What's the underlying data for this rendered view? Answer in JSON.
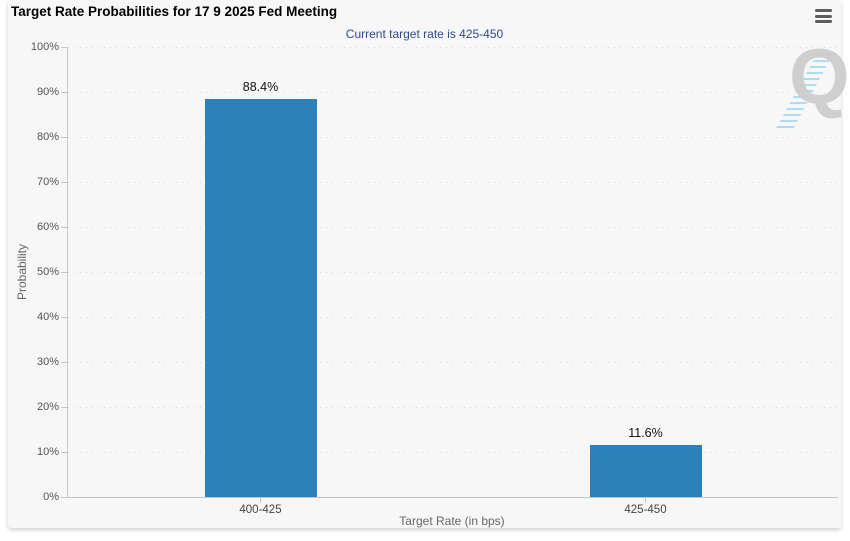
{
  "chart": {
    "title": "Target Rate Probabilities for 17 9 2025 Fed Meeting",
    "subtitle": "Current target rate is 425-450",
    "menu_icon": "hamburger-icon",
    "watermark_letter": "Q"
  },
  "chart_data": {
    "type": "bar",
    "title": "Target Rate Probabilities for 17 9 2025 Fed Meeting",
    "subtitle": "Current target rate is 425-450",
    "categories": [
      "400-425",
      "425-450"
    ],
    "values": [
      88.4,
      11.6
    ],
    "data_labels": [
      "88.4%",
      "11.6%"
    ],
    "xlabel": "Target Rate (in bps)",
    "ylabel": "Probability",
    "ylim": [
      0,
      100
    ],
    "ytick_step": 10,
    "ytick_suffix": "%",
    "ytick_labels": [
      "0%",
      "10%",
      "20%",
      "30%",
      "40%",
      "50%",
      "60%",
      "70%",
      "80%",
      "90%",
      "100%"
    ],
    "grid": "horizontal-dotted",
    "legend": "none",
    "colors": {
      "bar": "#2c81ba",
      "panel_bg": "#f7f7f7",
      "subtitle_text": "#2d4b8c",
      "watermark_gray": "#cbcbcb",
      "watermark_blue": "#aeddf3"
    }
  }
}
